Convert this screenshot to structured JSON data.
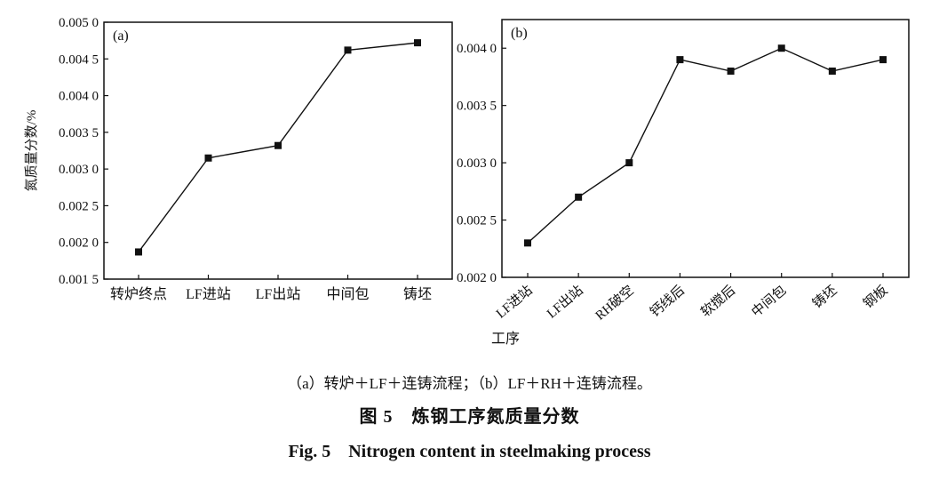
{
  "chart_data": [
    {
      "type": "line",
      "panel_label": "(a)",
      "ylabel": "氮质量分数/%",
      "xlabel": "",
      "categories": [
        "转炉终点",
        "LF进站",
        "LF出站",
        "中间包",
        "铸坯"
      ],
      "values": [
        0.00187,
        0.00315,
        0.00332,
        0.00462,
        0.00472
      ],
      "ylim": [
        0.0015,
        0.005
      ],
      "yticks": [
        0.0015,
        0.002,
        0.0025,
        0.003,
        0.0035,
        0.004,
        0.0045,
        0.005
      ],
      "ytick_labels": [
        "0.001 5",
        "0.002 0",
        "0.002 5",
        "0.003 0",
        "0.003 5",
        "0.004 0",
        "0.004 5",
        "0.005 0"
      ],
      "marker": "square",
      "grid": false
    },
    {
      "type": "line",
      "panel_label": "(b)",
      "ylabel": "",
      "xlabel": "工序",
      "categories": [
        "LF进站",
        "LF出站",
        "RH破空",
        "钙线后",
        "软搅后",
        "中间包",
        "铸坯",
        "钢板"
      ],
      "values": [
        0.0023,
        0.0027,
        0.003,
        0.0039,
        0.0038,
        0.004,
        0.0038,
        0.0039
      ],
      "ylim": [
        0.002,
        0.00425
      ],
      "yticks": [
        0.002,
        0.0025,
        0.003,
        0.0035,
        0.004
      ],
      "ytick_labels": [
        "0.002 0",
        "0.002 5",
        "0.003 0",
        "0.003 5",
        "0.004 0"
      ],
      "marker": "square",
      "grid": false
    }
  ],
  "captions": {
    "sub": "（a）转炉＋LF＋连铸流程；（b）LF＋RH＋连铸流程。",
    "cn": "图 5　炼钢工序氮质量分数",
    "en": "Fig. 5　Nitrogen content in steelmaking process"
  }
}
